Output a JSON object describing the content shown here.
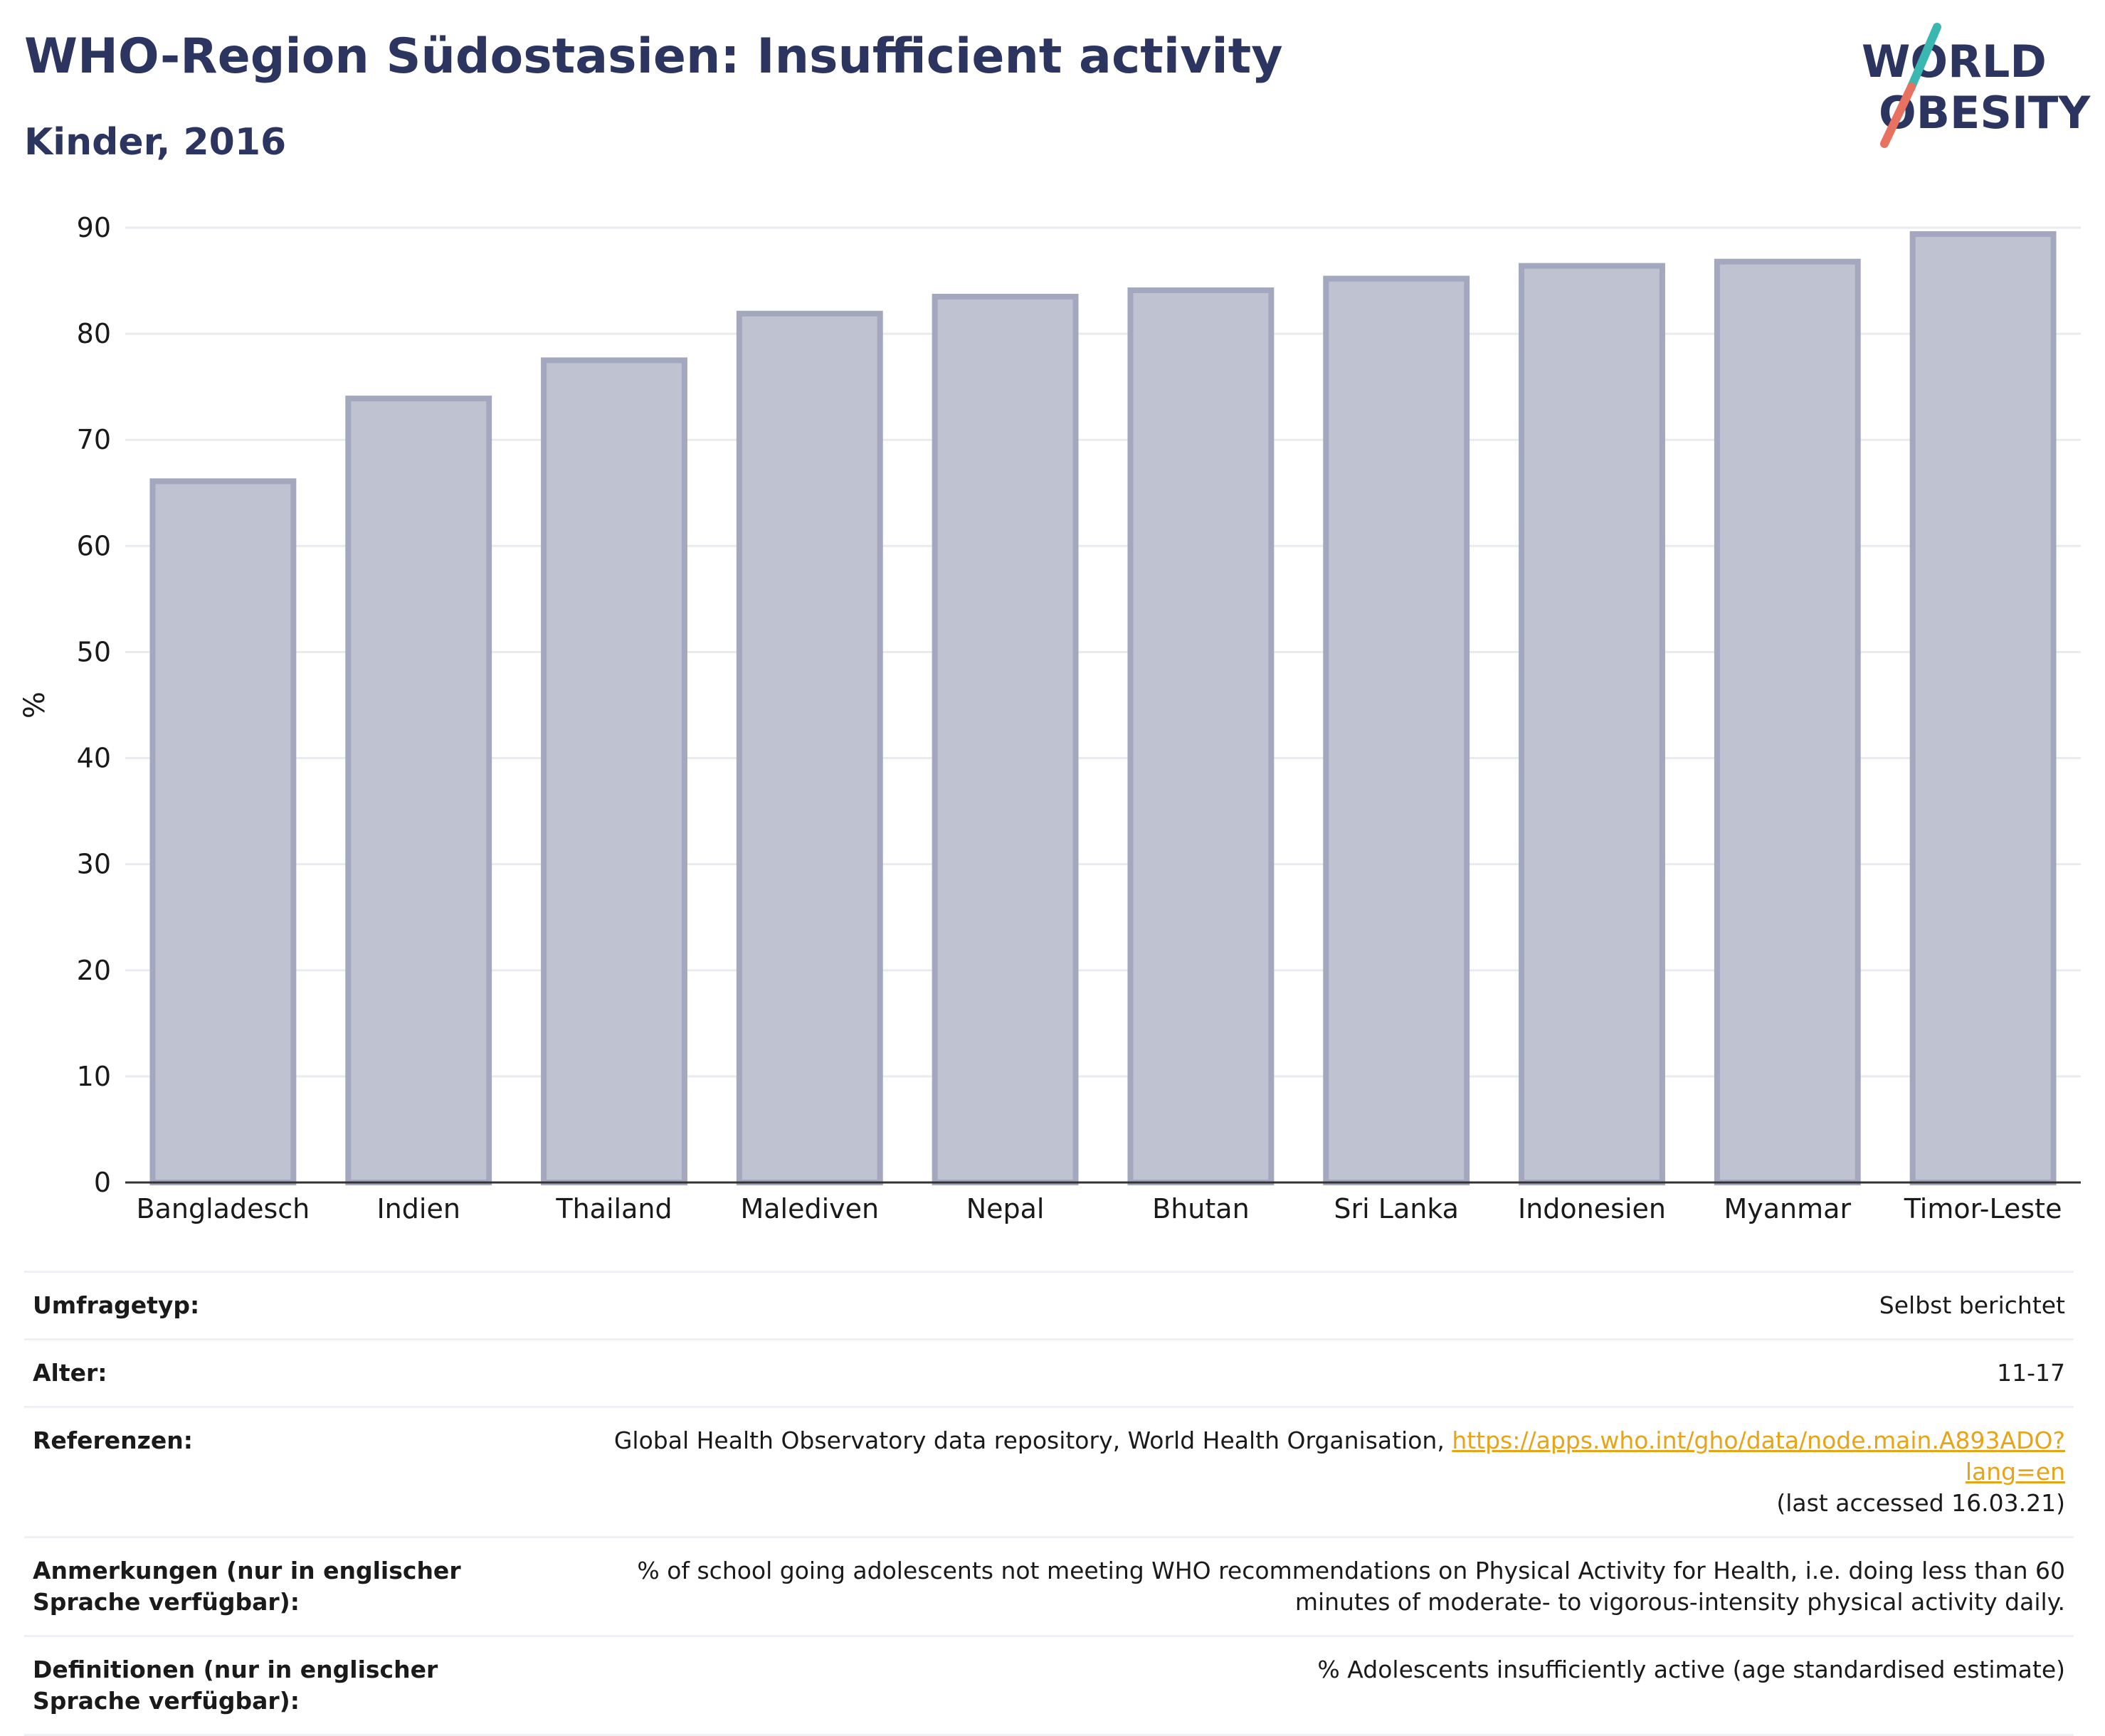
{
  "header": {
    "title": "WHO-Region Südostasien: Insufficient activity",
    "subtitle": "Kinder, 2016"
  },
  "logo": {
    "line1": "WORLD",
    "line2": "OBESITY",
    "colors": {
      "text": "#2b355f",
      "slash_top": "#3ab7b0",
      "slash_bottom": "#e8725f"
    }
  },
  "chart_data": {
    "type": "bar",
    "categories": [
      "Bangladesch",
      "Indien",
      "Thailand",
      "Malediven",
      "Nepal",
      "Bhutan",
      "Sri Lanka",
      "Indonesien",
      "Myanmar",
      "Timor-Leste"
    ],
    "values": [
      66.1,
      73.9,
      77.5,
      81.9,
      83.5,
      84.1,
      85.2,
      86.4,
      86.8,
      89.4
    ],
    "title": "",
    "xlabel": "",
    "ylabel": "%",
    "ylim": [
      0,
      90
    ],
    "yticks": [
      0,
      10,
      20,
      30,
      40,
      50,
      60,
      70,
      80,
      90
    ],
    "grid": true,
    "bar_fill": "#bfc2d0",
    "bar_stroke": "#a3a8bf"
  },
  "meta": {
    "rows": [
      {
        "label": "Umfragetyp:",
        "value": "Selbst berichtet"
      },
      {
        "label": "Alter:",
        "value": "11-17"
      },
      {
        "label": "Referenzen:",
        "value_prefix": "Global Health Observatory data repository, World Health Organisation, ",
        "link": "https://apps.who.int/gho/data/node.main.A893ADO?lang=en",
        "value_suffix": "(last accessed 16.03.21)"
      },
      {
        "label": "Anmerkungen (nur in englischer Sprache verfügbar):",
        "value": "% of school going adolescents not meeting WHO recommendations on Physical Activity for Health, i.e. doing less than 60 minutes of moderate- to vigorous-intensity physical activity daily."
      },
      {
        "label": "Definitionen (nur in englischer Sprache verfügbar):",
        "value": "% Adolescents insufficiently active (age standardised estimate)"
      }
    ]
  }
}
